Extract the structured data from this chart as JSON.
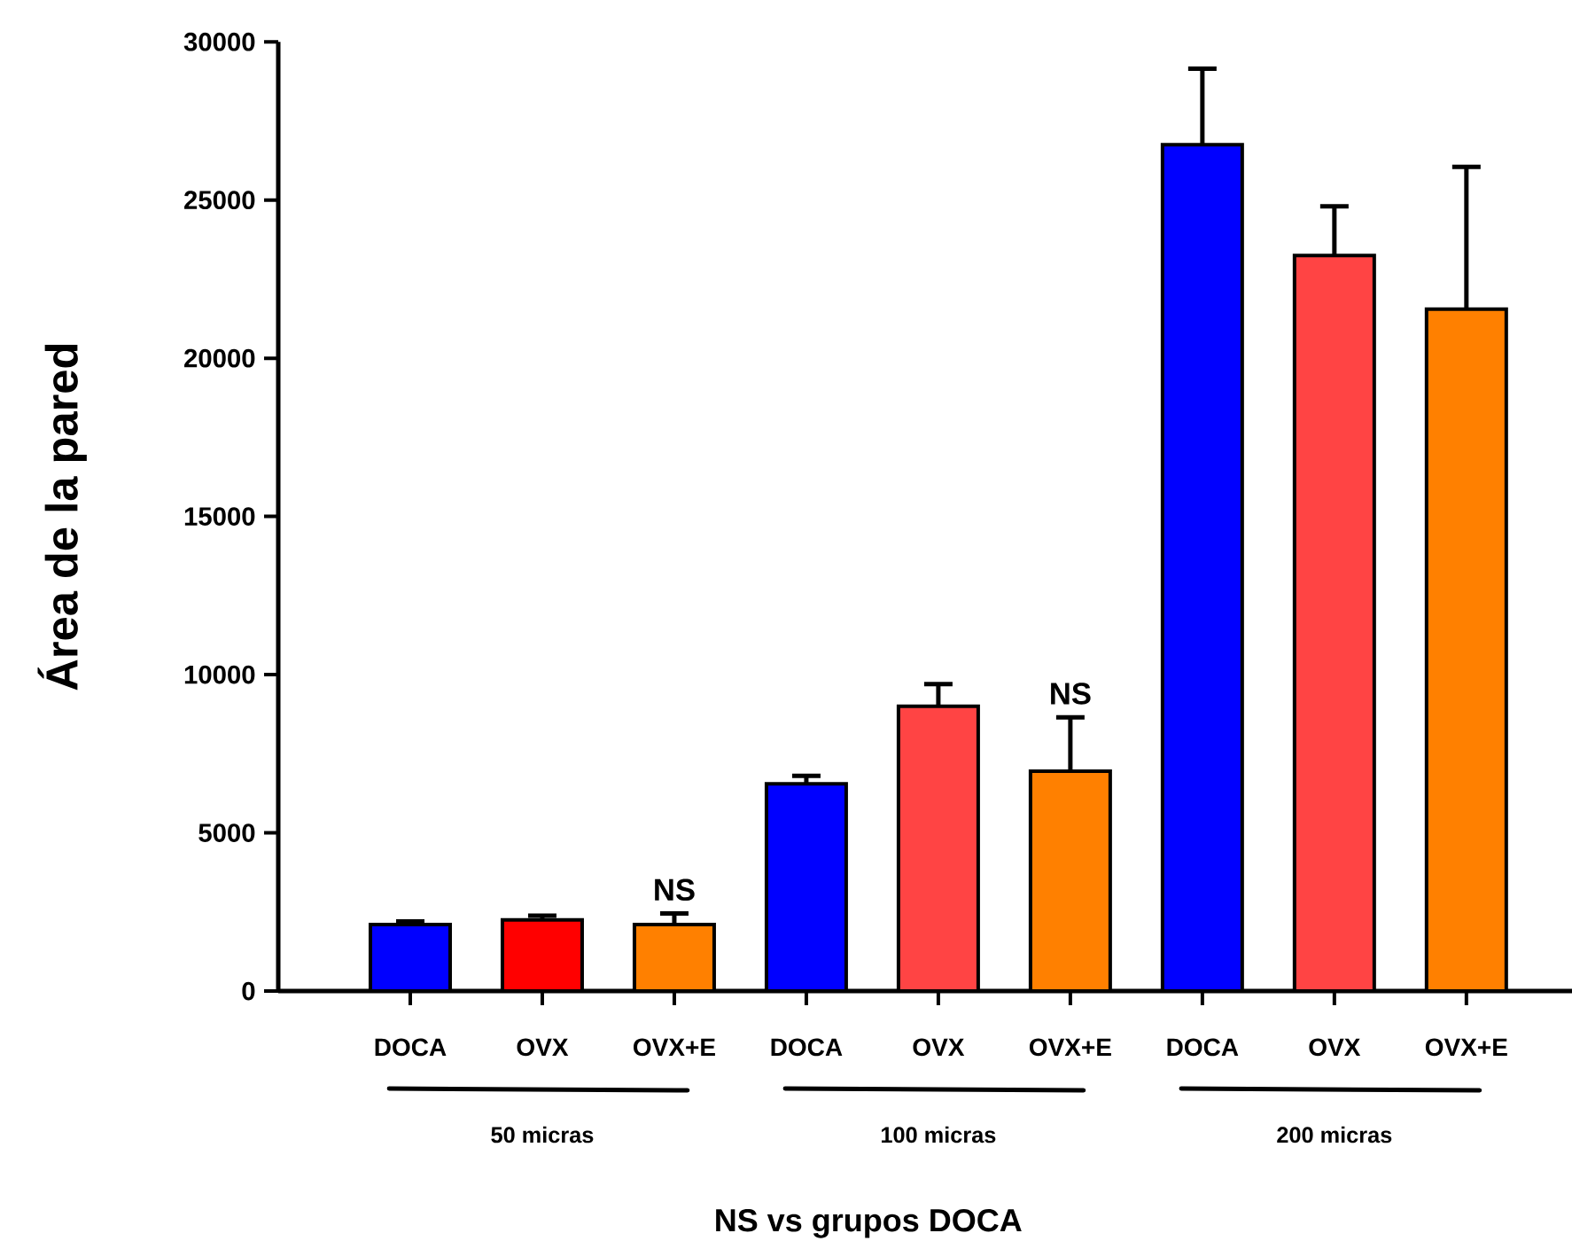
{
  "chart_data": {
    "type": "bar",
    "ylabel": "Área de la pared",
    "xlabel": "NS vs grupos DOCA",
    "categories": [
      "DOCA",
      "OVX",
      "OVX+E",
      "DOCA",
      "OVX",
      "OVX+E",
      "DOCA",
      "OVX",
      "OVX+E"
    ],
    "values": [
      2100,
      2250,
      2100,
      6550,
      9000,
      6950,
      26750,
      23250,
      21550
    ],
    "errors": [
      100,
      130,
      350,
      250,
      700,
      1700,
      2400,
      1550,
      4500
    ],
    "colors": [
      "#0000ff",
      "#ff0000",
      "#ff8000",
      "#0000ff",
      "#ff4444",
      "#ff8000",
      "#0000ff",
      "#ff4444",
      "#ff8000"
    ],
    "ylim": [
      0,
      30000
    ],
    "yticks": [
      0,
      5000,
      10000,
      15000,
      20000,
      25000,
      30000
    ],
    "annotations": [
      "50 micras",
      "100 micras",
      "200 micras",
      "NS",
      "NS"
    ]
  }
}
